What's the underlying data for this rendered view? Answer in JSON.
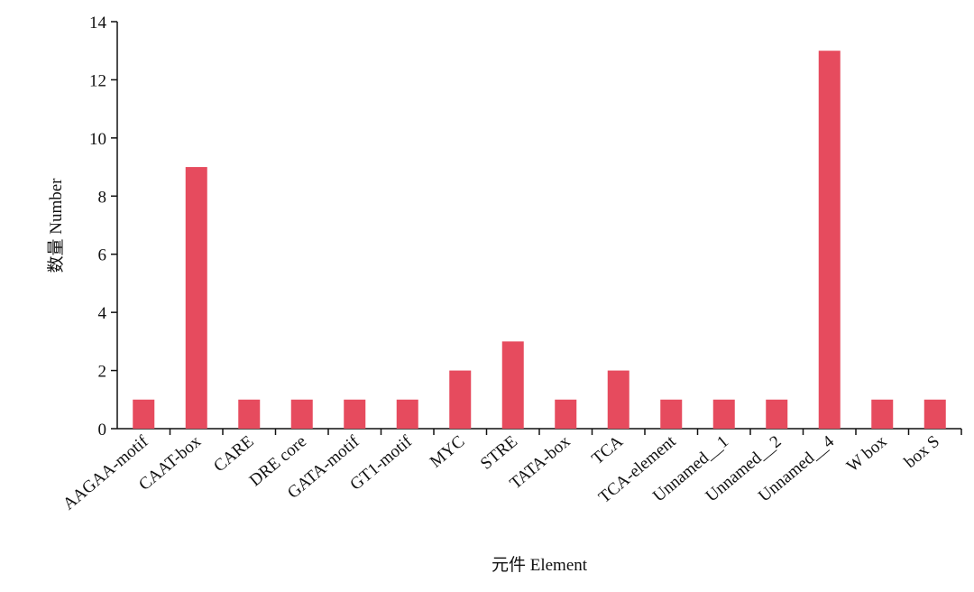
{
  "chart_data": {
    "type": "bar",
    "x_label": "元件 Element",
    "y_label": "数量 Number",
    "categories": [
      "AAGAA-motif",
      "CAAT-box",
      "CARE",
      "DRE core",
      "GATA-motif",
      "GT1-motif",
      "MYC",
      "STRE",
      "TATA-box",
      "TCA",
      "TCA-element",
      "Unnamed__1",
      "Unnamed__2",
      "Unnamed__4",
      "W box",
      "box S"
    ],
    "values": [
      1,
      9,
      1,
      1,
      1,
      1,
      2,
      3,
      1,
      2,
      1,
      1,
      1,
      13,
      1,
      1
    ],
    "color": "#e64b5e",
    "ylim": [
      0,
      14
    ],
    "yticks": [
      0,
      2,
      4,
      6,
      8,
      10,
      12,
      14
    ],
    "grid": false
  }
}
